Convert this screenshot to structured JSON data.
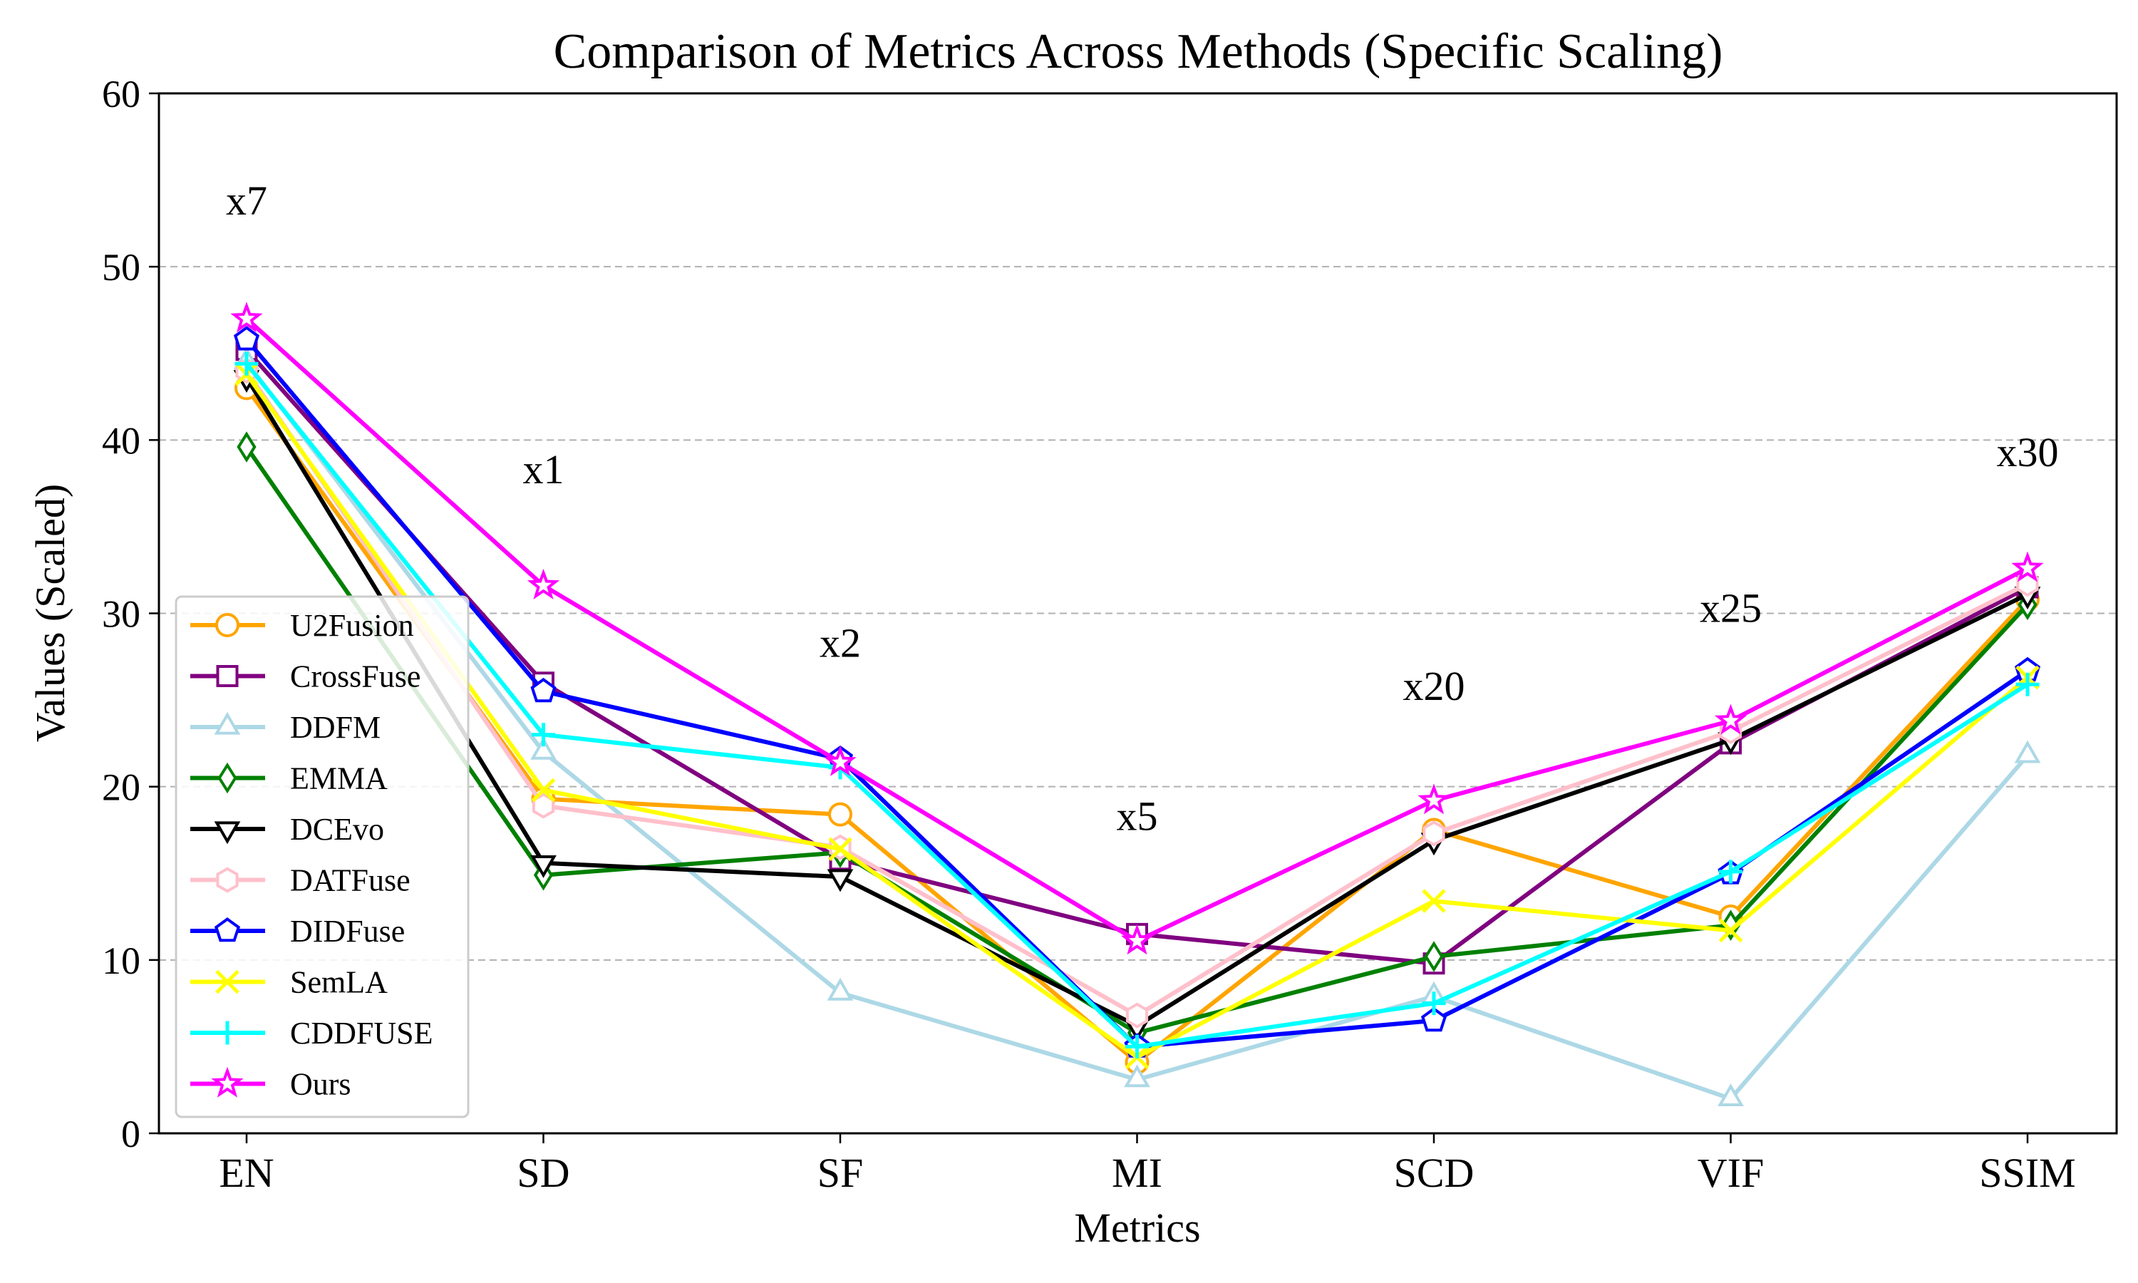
{
  "chart_data": {
    "type": "line",
    "title": "Comparison of Metrics Across Methods (Specific Scaling)",
    "xlabel": "Metrics",
    "ylabel": "Values (Scaled)",
    "categories": [
      "EN",
      "SD",
      "SF",
      "MI",
      "SCD",
      "VIF",
      "SSIM"
    ],
    "ylim": [
      0,
      60
    ],
    "yticks": [
      0,
      10,
      20,
      30,
      40,
      50,
      60
    ],
    "grid": "horizontal dashed",
    "legend_position": "lower-left",
    "scale_annotations": [
      {
        "category": "EN",
        "label": "x7",
        "y": 53
      },
      {
        "category": "SD",
        "label": "x1",
        "y": 37.5
      },
      {
        "category": "SF",
        "label": "x2",
        "y": 27.5
      },
      {
        "category": "MI",
        "label": "x5",
        "y": 17.5
      },
      {
        "category": "SCD",
        "label": "x20",
        "y": 25
      },
      {
        "category": "VIF",
        "label": "x25",
        "y": 29.5
      },
      {
        "category": "SSIM",
        "label": "x30",
        "y": 38.5
      }
    ],
    "series": [
      {
        "name": "U2Fusion",
        "color": "#FFA500",
        "marker": "circle",
        "values": [
          43.0,
          19.3,
          18.4,
          4.1,
          17.5,
          12.5,
          30.8
        ]
      },
      {
        "name": "CrossFuse",
        "color": "#800080",
        "marker": "square",
        "values": [
          45.2,
          26.0,
          15.8,
          11.5,
          9.8,
          22.5,
          31.5
        ]
      },
      {
        "name": "DDFM",
        "color": "#ADD8E6",
        "marker": "triangle-up",
        "values": [
          44.5,
          22.0,
          8.1,
          3.1,
          7.9,
          2.0,
          21.8
        ]
      },
      {
        "name": "EMMA",
        "color": "#008000",
        "marker": "diamond",
        "values": [
          39.6,
          14.9,
          16.2,
          5.8,
          10.2,
          12.0,
          30.5
        ]
      },
      {
        "name": "DCEvo",
        "color": "#000000",
        "marker": "triangle-down",
        "values": [
          43.6,
          15.6,
          14.8,
          6.2,
          16.9,
          22.7,
          31.1
        ]
      },
      {
        "name": "DATFuse",
        "color": "#FFC0CB",
        "marker": "hexagon",
        "values": [
          44.0,
          18.9,
          16.5,
          6.8,
          17.3,
          23.2,
          31.7
        ]
      },
      {
        "name": "DIDFuse",
        "color": "#0000FF",
        "marker": "pentagon",
        "values": [
          45.8,
          25.5,
          21.6,
          5.0,
          6.5,
          15.0,
          26.7
        ]
      },
      {
        "name": "SemLA",
        "color": "#FFFF00",
        "marker": "x",
        "values": [
          43.8,
          19.8,
          16.4,
          4.4,
          13.4,
          11.7,
          26.3
        ]
      },
      {
        "name": "CDDFUSE",
        "color": "#00FFFF",
        "marker": "plus",
        "values": [
          44.4,
          23.0,
          21.1,
          5.0,
          7.5,
          15.1,
          25.9
        ]
      },
      {
        "name": "Ours",
        "color": "#FF00FF",
        "marker": "star",
        "values": [
          47.0,
          31.6,
          21.4,
          11.1,
          19.2,
          23.8,
          32.6
        ]
      }
    ]
  }
}
